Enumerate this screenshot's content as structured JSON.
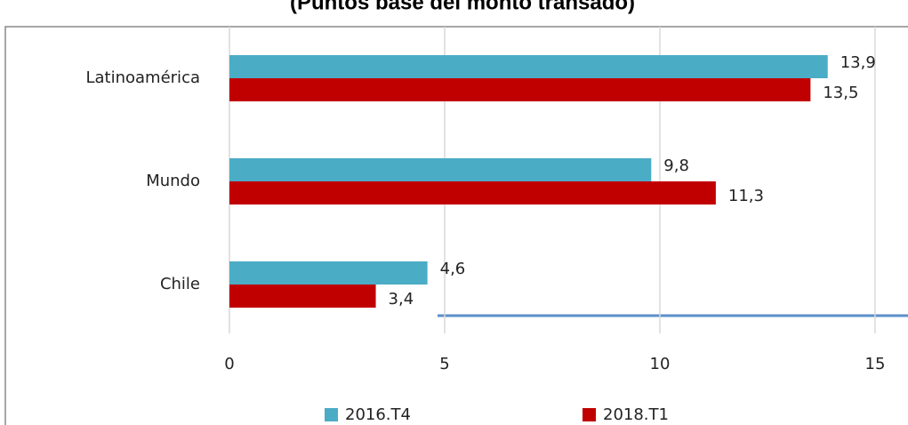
{
  "chart_data": {
    "type": "bar",
    "orientation": "horizontal",
    "title": "(Puntos base del monto transado)",
    "categories": [
      "Latinoamérica",
      "Mundo",
      "Chile"
    ],
    "series": [
      {
        "name": "2016.T4",
        "color": "#4bacc6",
        "values": [
          13.9,
          9.8,
          4.6
        ],
        "value_labels": [
          "13,9",
          "9,8",
          "4,6"
        ]
      },
      {
        "name": "2018.T1",
        "color": "#c00000",
        "values": [
          13.5,
          11.3,
          3.4
        ],
        "value_labels": [
          "13,5",
          "11,3",
          "3,4"
        ]
      }
    ],
    "xlim": [
      0,
      15.6
    ],
    "xticks": [
      0,
      5,
      10,
      15
    ],
    "grid": true,
    "legend": "bottom"
  }
}
